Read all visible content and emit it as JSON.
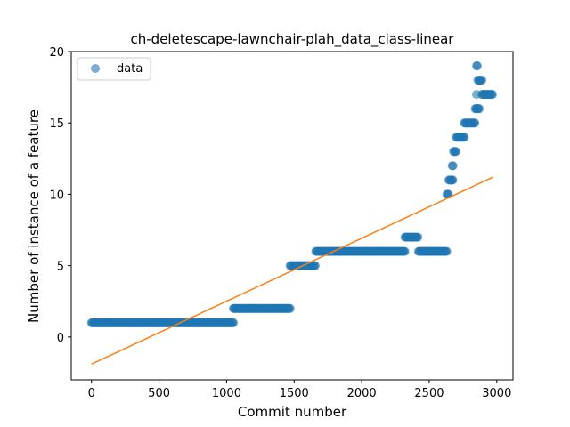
{
  "chart_data": {
    "type": "scatter",
    "title": "ch-deletescape-lawnchair-plah_data_class-linear",
    "xlabel": "Commit number",
    "ylabel": "Number of instance of a feature",
    "xlim": [
      -150,
      3120
    ],
    "ylim": [
      -3,
      20
    ],
    "x_ticks": [
      0,
      500,
      1000,
      1500,
      2000,
      2500,
      3000
    ],
    "y_ticks": [
      0,
      5,
      10,
      15,
      20
    ],
    "grid": false,
    "legend": {
      "placement": "top-left",
      "entries": [
        "data"
      ]
    },
    "colors": {
      "data": "#1f77b4",
      "fit": "#ff7f0e"
    },
    "series": [
      {
        "name": "data",
        "kind": "scatter",
        "segments": [
          {
            "x_start": 0,
            "x_end": 1050,
            "y": 1
          },
          {
            "x_start": 1050,
            "x_end": 1470,
            "y": 2
          },
          {
            "x_start": 1470,
            "x_end": 1660,
            "y": 5
          },
          {
            "x_start": 1660,
            "x_end": 2320,
            "y": 6
          },
          {
            "x_start": 2320,
            "x_end": 2420,
            "y": 7
          },
          {
            "x_start": 2420,
            "x_end": 2630,
            "y": 6
          },
          {
            "x_start": 2630,
            "x_end": 2645,
            "y": 10
          },
          {
            "x_start": 2645,
            "x_end": 2680,
            "y": 11
          },
          {
            "x_start": 2670,
            "x_end": 2680,
            "y": 12
          },
          {
            "x_start": 2680,
            "x_end": 2700,
            "y": 13
          },
          {
            "x_start": 2700,
            "x_end": 2760,
            "y": 14
          },
          {
            "x_start": 2760,
            "x_end": 2840,
            "y": 15
          },
          {
            "x_start": 2840,
            "x_end": 2870,
            "y": 16
          },
          {
            "x_start": 2850,
            "x_end": 2860,
            "y": 19
          },
          {
            "x_start": 2860,
            "x_end": 2890,
            "y": 18
          },
          {
            "x_start": 2850,
            "x_end": 2855,
            "y": 17
          },
          {
            "x_start": 2890,
            "x_end": 2970,
            "y": 17
          }
        ]
      },
      {
        "kind": "line",
        "x": [
          0,
          2970
        ],
        "y": [
          -1.9,
          11.2
        ]
      }
    ]
  }
}
